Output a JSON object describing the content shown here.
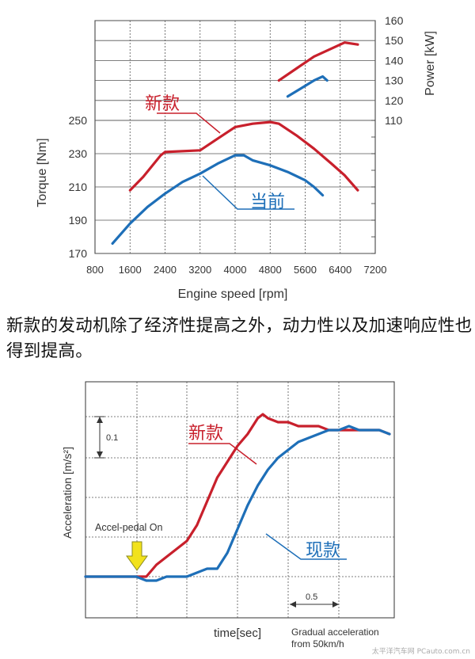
{
  "caption": "新款的发动机除了经济性提高之外，动力性以及加速响应性也得到提高。",
  "watermark": "太平洋汽车网 PCauto.com.cn",
  "colors": {
    "new": "#c8202c",
    "current": "#1e6fb8",
    "grid": "#555555",
    "arrow": "#f2e21c"
  },
  "chart_data": [
    {
      "type": "line",
      "xlabel": "Engine speed [rpm]",
      "ylabel": "Torque [Nm]",
      "y2label": "Power [kW]",
      "xlim": [
        800,
        7200
      ],
      "ylim": [
        170,
        250
      ],
      "y2lim": [
        110,
        160
      ],
      "xticks": [
        "800",
        "1600",
        "2400",
        "3200",
        "4000",
        "4800",
        "5600",
        "6400",
        "7200"
      ],
      "yticks": [
        "170",
        "190",
        "210",
        "230",
        "250"
      ],
      "y2ticks": [
        "110",
        "120",
        "130",
        "140",
        "150",
        "160"
      ],
      "series": [
        {
          "name": "新款",
          "axis": "torque",
          "color": "#c8202c",
          "x": [
            1600,
            1900,
            2300,
            2400,
            3200,
            3600,
            4000,
            4400,
            4800,
            5000,
            5400,
            5800,
            6200,
            6500,
            6800
          ],
          "y": [
            208,
            216,
            229,
            231,
            232,
            239,
            246,
            248,
            249,
            248,
            241,
            233,
            224,
            217,
            208
          ]
        },
        {
          "name": "当前",
          "axis": "torque",
          "color": "#1e6fb8",
          "x": [
            1200,
            1600,
            2000,
            2400,
            2800,
            3200,
            3600,
            4000,
            4200,
            4400,
            4800,
            5200,
            5600,
            5800,
            6000
          ],
          "y": [
            176,
            188,
            198,
            206,
            213,
            218,
            224,
            229,
            229,
            226,
            223,
            219,
            214,
            210,
            205
          ]
        },
        {
          "name": "新款",
          "axis": "power",
          "color": "#c8202c",
          "x": [
            5000,
            5400,
            5800,
            6200,
            6500,
            6800
          ],
          "y": [
            130,
            136,
            142,
            146,
            149,
            148
          ]
        },
        {
          "name": "当前",
          "axis": "power",
          "color": "#1e6fb8",
          "x": [
            5200,
            5500,
            5800,
            6000,
            6100
          ],
          "y": [
            122,
            126,
            130,
            132,
            130
          ]
        }
      ],
      "annotations": [
        "新款",
        "当前"
      ]
    },
    {
      "type": "line",
      "xlabel": "time[sec]",
      "ylabel": "Acceleration [m/s²]",
      "scale_annotations": {
        "acceleration": "0.1",
        "time": "0.5"
      },
      "notes": [
        "Accel-pedal On",
        "Gradual acceleration",
        "from 50km/h"
      ],
      "series": [
        {
          "name": "新款",
          "color": "#c8202c",
          "x": [
            0,
            0.3,
            0.5,
            0.6,
            0.7,
            0.8,
            0.9,
            1.0,
            1.1,
            1.2,
            1.3,
            1.4,
            1.5,
            1.6,
            1.7,
            1.75,
            1.8,
            1.9,
            2.0,
            2.1,
            2.2,
            2.3,
            2.4,
            2.5,
            2.6,
            2.7,
            2.8,
            2.9,
            3.0
          ],
          "y": [
            0,
            0.0,
            0.0,
            0.0,
            0.03,
            0.05,
            0.07,
            0.09,
            0.13,
            0.19,
            0.25,
            0.29,
            0.33,
            0.36,
            0.4,
            0.41,
            0.4,
            0.39,
            0.39,
            0.38,
            0.38,
            0.38,
            0.37,
            0.37,
            0.37,
            0.37,
            0.37,
            0.37,
            0.36
          ]
        },
        {
          "name": "现款",
          "color": "#1e6fb8",
          "x": [
            0,
            0.3,
            0.5,
            0.6,
            0.7,
            0.8,
            0.9,
            1.0,
            1.1,
            1.2,
            1.3,
            1.4,
            1.5,
            1.6,
            1.7,
            1.8,
            1.9,
            2.0,
            2.1,
            2.2,
            2.3,
            2.4,
            2.5,
            2.6,
            2.7,
            2.8,
            2.9,
            3.0
          ],
          "y": [
            0,
            0.0,
            0.0,
            -0.01,
            -0.01,
            0.0,
            0.0,
            0.0,
            0.01,
            0.02,
            0.02,
            0.06,
            0.12,
            0.18,
            0.23,
            0.27,
            0.3,
            0.32,
            0.34,
            0.35,
            0.36,
            0.37,
            0.37,
            0.38,
            0.37,
            0.37,
            0.37,
            0.36
          ]
        }
      ],
      "annotations": [
        "新款",
        "现款"
      ]
    }
  ]
}
